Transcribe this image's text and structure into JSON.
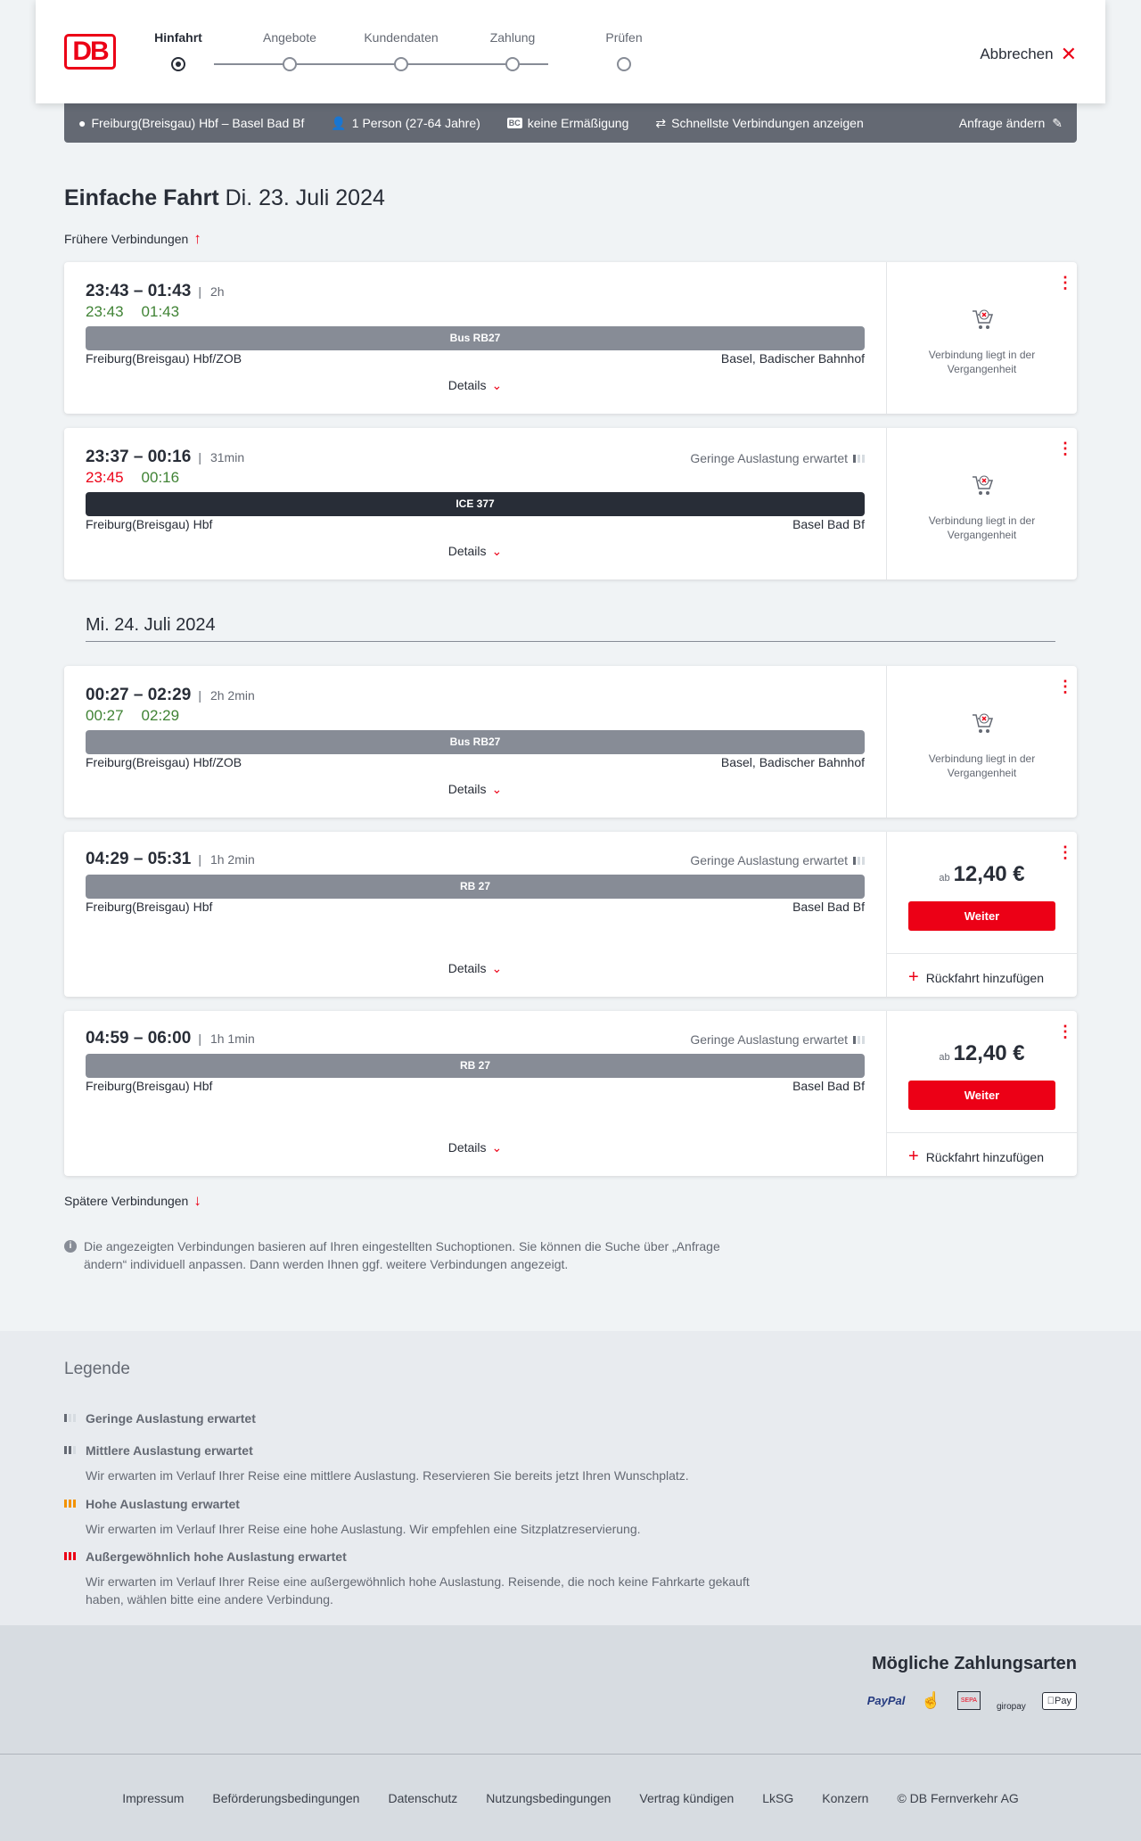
{
  "header": {
    "logo": "DB",
    "steps": [
      {
        "label": "Hinfahrt",
        "active": true
      },
      {
        "label": "Angebote"
      },
      {
        "label": "Kundendaten"
      },
      {
        "label": "Zahlung"
      },
      {
        "label": "Prüfen"
      }
    ],
    "cancel": "Abbrechen"
  },
  "infobar": {
    "route": "Freiburg(Breisgau) Hbf – Basel Bad Bf",
    "travellers": "1 Person (27-64 Jahre)",
    "discount_badge": "BC",
    "discount": "keine Ermäßigung",
    "fastest": "Schnellste Verbindungen anzeigen",
    "change": "Anfrage ändern"
  },
  "title": {
    "main": "Einfache Fahrt",
    "date": "Di. 23. Juli 2024"
  },
  "earlier": "Frühere Verbindungen",
  "date2": "Mi. 24. Juli 2024",
  "past_text": "Verbindung liegt in der Vergangenheit",
  "details": "Details",
  "occupancy_low": "Geringe Auslastung erwartet",
  "connections": [
    {
      "times": "23:43 – 01:43",
      "duration": "2h",
      "rt_dep": "23:43",
      "rt_dep_color": "green",
      "rt_arr": "01:43",
      "train": "Bus RB27",
      "from": "Freiburg(Breisgau) Hbf/ZOB",
      "to": "Basel, Badischer Bahnhof",
      "past": true
    },
    {
      "times": "23:37 – 00:16",
      "duration": "31min",
      "rt_dep": "23:45",
      "rt_dep_color": "red",
      "rt_arr": "00:16",
      "train": "ICE 377",
      "from": "Freiburg(Breisgau) Hbf",
      "to": "Basel Bad Bf",
      "past": true,
      "occupancy": "Geringe Auslastung erwartet"
    },
    {
      "times": "00:27 – 02:29",
      "duration": "2h 2min",
      "rt_dep": "00:27",
      "rt_dep_color": "green",
      "rt_arr": "02:29",
      "train": "Bus RB27",
      "from": "Freiburg(Breisgau) Hbf/ZOB",
      "to": "Basel, Badischer Bahnhof",
      "past": true
    },
    {
      "times": "04:29 – 05:31",
      "duration": "1h 2min",
      "train": "RB 27",
      "from": "Freiburg(Breisgau) Hbf",
      "to": "Basel Bad Bf",
      "occupancy": "Geringe Auslastung erwartet",
      "price_prefix": "ab",
      "price": "12,40 €",
      "button": "Weiter",
      "return": "Rückfahrt hinzufügen"
    },
    {
      "times": "04:59 – 06:00",
      "duration": "1h 1min",
      "train": "RB 27",
      "from": "Freiburg(Breisgau) Hbf",
      "to": "Basel Bad Bf",
      "occupancy": "Geringe Auslastung erwartet",
      "price_prefix": "ab",
      "price": "12,40 €",
      "button": "Weiter",
      "return": "Rückfahrt hinzufügen"
    }
  ],
  "later": "Spätere Verbindungen",
  "note": "Die angezeigten Verbindungen basieren auf Ihren eingestellten Suchoptionen. Sie können die Suche über „Anfrage ändern“ individuell anpassen. Dann werden Ihnen ggf. weitere Verbindungen angezeigt.",
  "legend": {
    "title": "Legende",
    "items": [
      {
        "title": "Geringe Auslastung erwartet",
        "desc": ""
      },
      {
        "title": "Mittlere Auslastung erwartet",
        "desc": "Wir erwarten im Verlauf Ihrer Reise eine mittlere Auslastung. Reservieren Sie bereits jetzt Ihren Wunschplatz."
      },
      {
        "title": "Hohe Auslastung erwartet",
        "desc": "Wir erwarten im Verlauf Ihrer Reise eine hohe Auslastung. Wir empfehlen eine Sitzplatzreservierung."
      },
      {
        "title": "Außergewöhnlich hohe Auslastung erwartet",
        "desc": "Wir erwarten im Verlauf Ihrer Reise eine außergewöhnlich hohe Auslastung. Reisende, die noch keine Fahrkarte gekauft haben, wählen bitte eine andere Verbindung."
      }
    ]
  },
  "payment": {
    "title": "Mögliche Zahlungsarten",
    "methods": [
      "PayPal",
      "Kreditkarte",
      "SEPA",
      "giropay",
      "Pay"
    ]
  },
  "footer": [
    "Impressum",
    "Beförderungsbedingungen",
    "Datenschutz",
    "Nutzungsbedingungen",
    "Vertrag kündigen",
    "LkSG",
    "Konzern",
    "© DB Fernverkehr AG"
  ],
  "colors": {
    "brand": "#ec0016",
    "on_time": "#408335",
    "delayed": "#ec0016",
    "high_occupancy": "#f39200"
  }
}
